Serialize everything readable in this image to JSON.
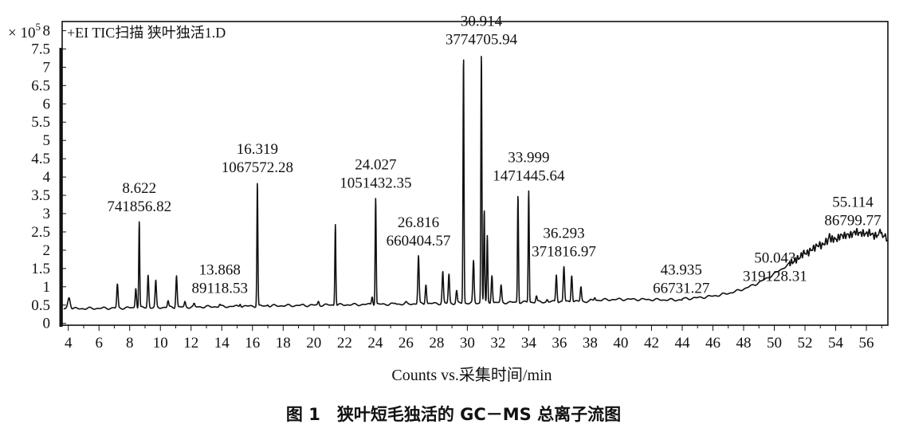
{
  "chart_data": {
    "type": "line",
    "trace_title": "+EI TIC扫描 狭叶独活1.D",
    "y_multiplier_base": "× 10",
    "y_multiplier_exp": "5",
    "xlabel": "Counts vs.采集时间/min",
    "caption": "图 1　狭叶短毛独活的 GC－MS 总离子流图",
    "xlim": [
      3.6,
      57.4
    ],
    "ylim": [
      -0.05,
      8.25
    ],
    "xticks": [
      "4",
      "6",
      "8",
      "10",
      "12",
      "14",
      "16",
      "18",
      "20",
      "22",
      "24",
      "26",
      "28",
      "30",
      "32",
      "34",
      "36",
      "38",
      "40",
      "42",
      "44",
      "46",
      "48",
      "50",
      "52",
      "54",
      "56"
    ],
    "yticks": [
      "0",
      "0.5",
      "1",
      "1.5",
      "2",
      "2.5",
      "3",
      "3.5",
      "4",
      "4.5",
      "5",
      "5.5",
      "6",
      "6.5",
      "7",
      "7.5",
      "8"
    ],
    "peak_labels": [
      {
        "rt": "8.622",
        "area": "741856.82",
        "rt_min": 8.622,
        "height": 2.78
      },
      {
        "rt": "13.868",
        "area": "89118.53",
        "rt_min": 13.868,
        "height": 0.55
      },
      {
        "rt": "16.319",
        "area": "1067572.28",
        "rt_min": 16.319,
        "height": 3.85
      },
      {
        "rt": "24.027",
        "area": "1051432.35",
        "rt_min": 24.027,
        "height": 3.42
      },
      {
        "rt": "26.816",
        "area": "660404.57",
        "rt_min": 26.816,
        "height": 1.85
      },
      {
        "rt": "30.914",
        "area": "3774705.94",
        "rt_min": 30.914,
        "height": 7.35
      },
      {
        "rt": "33.999",
        "area": "1471445.64",
        "rt_min": 33.999,
        "height": 3.62
      },
      {
        "rt": "36.293",
        "area": "371816.97",
        "rt_min": 36.293,
        "height": 1.55
      },
      {
        "rt": "43.935",
        "area": "66731.27",
        "rt_min": 43.935,
        "height": 0.55
      },
      {
        "rt": "50.043",
        "area": "319128.31",
        "rt_min": 50.043,
        "height": 0.88
      },
      {
        "rt": "55.114",
        "area": "86799.77",
        "rt_min": 55.114,
        "height": 2.4
      }
    ],
    "peaks": [
      [
        4.05,
        0.42
      ],
      [
        7.2,
        1.08
      ],
      [
        8.4,
        0.95
      ],
      [
        8.622,
        2.78
      ],
      [
        9.2,
        1.32
      ],
      [
        9.7,
        1.18
      ],
      [
        10.5,
        0.62
      ],
      [
        11.05,
        1.3
      ],
      [
        11.6,
        0.6
      ],
      [
        12.2,
        0.55
      ],
      [
        13.868,
        0.52
      ],
      [
        15.2,
        0.52
      ],
      [
        16.319,
        3.85
      ],
      [
        17.0,
        0.5
      ],
      [
        19.3,
        0.52
      ],
      [
        20.3,
        0.6
      ],
      [
        21.4,
        2.7
      ],
      [
        23.8,
        0.72
      ],
      [
        24.027,
        3.42
      ],
      [
        25.3,
        0.55
      ],
      [
        26.0,
        0.6
      ],
      [
        26.816,
        1.85
      ],
      [
        27.3,
        1.05
      ],
      [
        28.4,
        1.42
      ],
      [
        28.8,
        1.35
      ],
      [
        29.3,
        0.9
      ],
      [
        29.75,
        7.28
      ],
      [
        30.4,
        1.72
      ],
      [
        30.914,
        7.35
      ],
      [
        31.1,
        3.1
      ],
      [
        31.3,
        2.4
      ],
      [
        31.6,
        1.3
      ],
      [
        32.2,
        1.05
      ],
      [
        33.3,
        3.5
      ],
      [
        33.999,
        3.62
      ],
      [
        34.5,
        0.75
      ],
      [
        35.2,
        0.65
      ],
      [
        35.8,
        1.32
      ],
      [
        36.293,
        1.55
      ],
      [
        36.8,
        1.3
      ],
      [
        37.4,
        1.0
      ],
      [
        38.3,
        0.7
      ],
      [
        43.935,
        0.55
      ],
      [
        48.0,
        0.75
      ],
      [
        50.043,
        0.88
      ],
      [
        51.3,
        1.3
      ],
      [
        53.6,
        2.45
      ],
      [
        56.9,
        2.65
      ]
    ]
  }
}
